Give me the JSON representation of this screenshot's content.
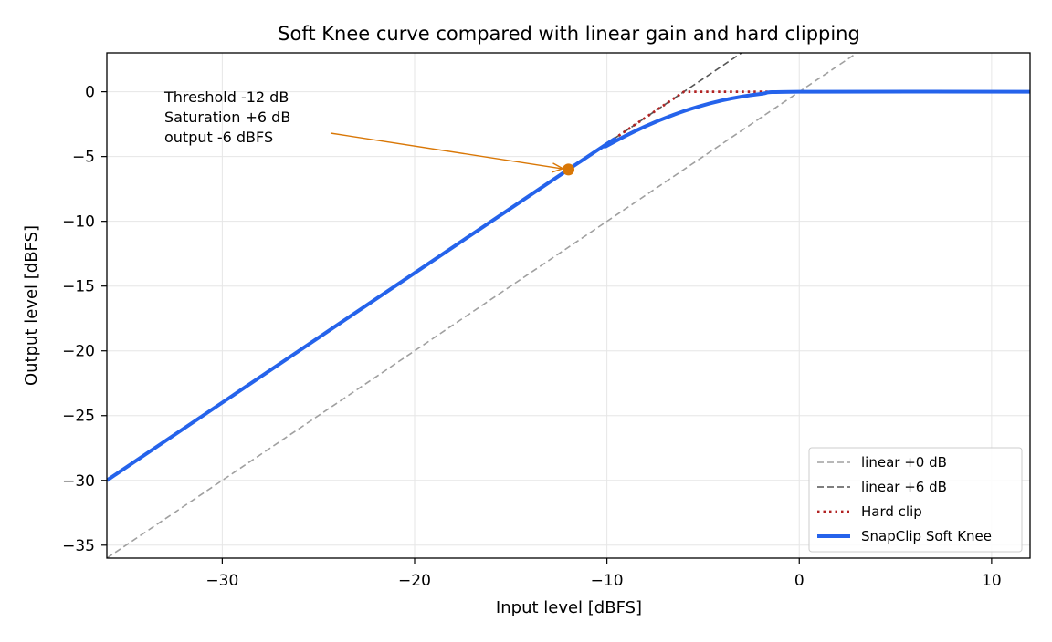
{
  "chart_data": {
    "type": "line",
    "title": "Soft Knee curve compared with linear gain and hard clipping",
    "xlabel": "Input level [dBFS]",
    "ylabel": "Output level [dBFS]",
    "xlim": [
      -36,
      12
    ],
    "ylim": [
      -36,
      3
    ],
    "x_ticks": [
      -30,
      -20,
      -10,
      0,
      10
    ],
    "y_ticks": [
      0,
      -5,
      -10,
      -15,
      -20,
      -25,
      -30,
      -35
    ],
    "x_tick_labels": [
      "−30",
      "−20",
      "−10",
      "0",
      "10"
    ],
    "y_tick_labels": [
      "0",
      "−5",
      "−10",
      "−15",
      "−20",
      "−25",
      "−30",
      "−35"
    ],
    "grid": true,
    "legend_position": "lower-right",
    "series": [
      {
        "name": "linear +0 dB",
        "color": "#a0a0a0",
        "style": "dashed",
        "x": [
          -36,
          12
        ],
        "y": [
          -36,
          12
        ]
      },
      {
        "name": "linear +6 dB",
        "color": "#555555",
        "style": "dashed",
        "x": [
          -36,
          12
        ],
        "y": [
          -30,
          18
        ]
      },
      {
        "name": "Hard clip",
        "color": "#b22222",
        "style": "dotted",
        "x": [
          -36,
          -6,
          12
        ],
        "y": [
          -30,
          0,
          0
        ]
      },
      {
        "name": "SnapClip Soft Knee",
        "color": "#2563eb",
        "style": "solid",
        "x": [
          -36,
          -12,
          -10,
          -8,
          -6,
          -4,
          -2,
          0,
          12
        ],
        "y": [
          -30,
          -6,
          -4.17,
          -2.67,
          -1.5,
          -0.67,
          -0.17,
          0,
          0
        ]
      }
    ],
    "annotation": {
      "lines": [
        "Threshold -12 dB",
        "Saturation +6 dB",
        "output -6 dBFS"
      ],
      "point": [
        -12,
        -6
      ],
      "color": "#d97706"
    }
  }
}
